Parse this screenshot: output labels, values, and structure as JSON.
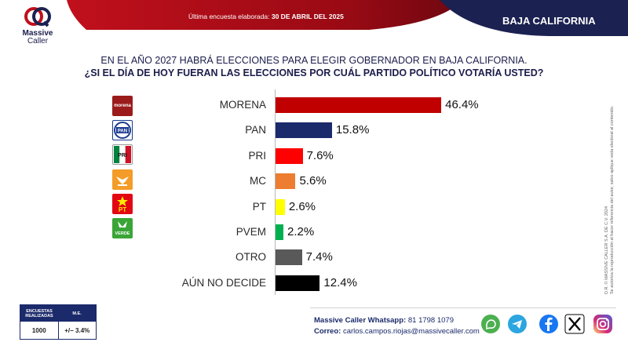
{
  "header": {
    "brand": "Massive",
    "brand_sub": "Caller",
    "date_prefix": "Última encuesta elaborada:",
    "date": "30 DE ABRIL DEL 2025",
    "region": "BAJA CALIFORNIA"
  },
  "question": {
    "line1": "EN EL AÑO 2027 HABRÁ ELECCIONES PARA ELEGIR GOBERNADOR EN BAJA CALIFORNIA.",
    "line2": "¿SI EL DÍA DE HOY FUERAN LAS ELECCIONES POR CUÁL PARTIDO POLÍTICO VOTARÍA USTED?"
  },
  "party_logo_texts": {
    "morena": "morena",
    "pan": "PAN",
    "pri": "PRI",
    "pt": "PT",
    "pvem": "VERDE"
  },
  "chart_data": {
    "type": "bar",
    "orientation": "horizontal",
    "title": "¿SI EL DÍA DE HOY FUERAN LAS ELECCIONES POR CUÁL PARTIDO POLÍTICO VOTARÍA USTED?",
    "categories": [
      "MORENA",
      "PAN",
      "PRI",
      "MC",
      "PT",
      "PVEM",
      "OTRO",
      "AÚN NO DECIDE"
    ],
    "values": [
      46.4,
      15.8,
      7.6,
      5.6,
      2.6,
      2.2,
      7.4,
      12.4
    ],
    "value_labels": [
      "46.4%",
      "15.8%",
      "7.6%",
      "5.6%",
      "2.6%",
      "2.2%",
      "7.4%",
      "12.4%"
    ],
    "colors": [
      "#c00000",
      "#1b2a6b",
      "#ff0000",
      "#ed7d31",
      "#ffff00",
      "#00b050",
      "#595959",
      "#000000"
    ],
    "xlim": [
      0,
      50
    ],
    "xlabel": "",
    "ylabel": ""
  },
  "copyright": {
    "line1": "D.R. © MASSIVE CALLER S.A. DE C.V. 2024",
    "line2": "Se autoriza la reproducción al hacer referencia del autor, salvo aplique veda electoral al contenido."
  },
  "sample": {
    "col1_header": "ENCUESTAS REALIZADAS",
    "col2_header": "M.E.",
    "col1_value": "1000",
    "col2_value": "+/− 3.4%"
  },
  "contact": {
    "whatsapp_label": "Massive Caller Whatsapp:",
    "whatsapp_number": "81 1798 1079",
    "email_label": "Correo:",
    "email": "carlos.campos.riojas@massivecaller.com"
  },
  "social_icons": [
    "whatsapp-icon",
    "telegram-icon",
    "facebook-icon",
    "x-icon",
    "instagram-icon"
  ]
}
